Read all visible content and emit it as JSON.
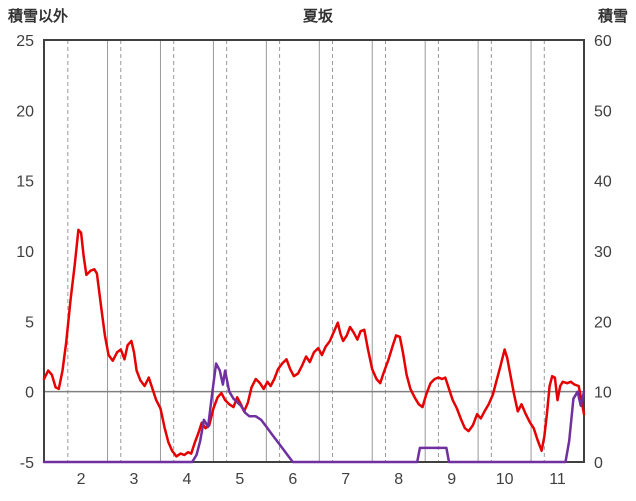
{
  "header": {
    "left_axis_title": "積雪以外",
    "chart_title": "夏坂",
    "right_axis_title": "積雪"
  },
  "chart_data": {
    "type": "line",
    "title": "夏坂",
    "left_axis_label": "積雪以外",
    "right_axis_label": "積雪",
    "xlim": [
      1.3,
      11.5
    ],
    "left_ylim": [
      -5,
      25
    ],
    "right_ylim": [
      0,
      60
    ],
    "x_ticks": [
      2,
      3,
      4,
      5,
      6,
      7,
      8,
      9,
      10,
      11
    ],
    "left_ticks": [
      25,
      20,
      15,
      10,
      5,
      0,
      -5
    ],
    "right_ticks": [
      60,
      50,
      40,
      30,
      20,
      10,
      0
    ],
    "grid": {
      "dashed_x_offset": -0.25,
      "solid_x_offset": 0.5,
      "solid_y_left": [
        0
      ],
      "gridline_color": "#999999",
      "zero_line_color": "#808080",
      "border_color": "#404040",
      "tick_label_color": "#404040"
    },
    "legend": "none",
    "series": [
      {
        "name": "積雪以外",
        "axis": "left",
        "color": "#e60000",
        "points": [
          [
            1.3,
            0.9
          ],
          [
            1.38,
            1.5
          ],
          [
            1.45,
            1.2
          ],
          [
            1.52,
            0.3
          ],
          [
            1.58,
            0.2
          ],
          [
            1.65,
            1.5
          ],
          [
            1.72,
            3.5
          ],
          [
            1.8,
            6.5
          ],
          [
            1.88,
            9.0
          ],
          [
            1.95,
            11.5
          ],
          [
            2.0,
            11.3
          ],
          [
            2.05,
            9.6
          ],
          [
            2.1,
            8.3
          ],
          [
            2.18,
            8.6
          ],
          [
            2.25,
            8.7
          ],
          [
            2.3,
            8.4
          ],
          [
            2.38,
            6.0
          ],
          [
            2.45,
            4.0
          ],
          [
            2.52,
            2.6
          ],
          [
            2.6,
            2.2
          ],
          [
            2.68,
            2.8
          ],
          [
            2.75,
            3.0
          ],
          [
            2.82,
            2.3
          ],
          [
            2.88,
            3.3
          ],
          [
            2.95,
            3.6
          ],
          [
            3.0,
            2.8
          ],
          [
            3.05,
            1.5
          ],
          [
            3.12,
            0.8
          ],
          [
            3.2,
            0.4
          ],
          [
            3.28,
            1.0
          ],
          [
            3.35,
            0.2
          ],
          [
            3.42,
            -0.6
          ],
          [
            3.5,
            -1.2
          ],
          [
            3.58,
            -2.6
          ],
          [
            3.65,
            -3.6
          ],
          [
            3.72,
            -4.2
          ],
          [
            3.8,
            -4.6
          ],
          [
            3.88,
            -4.4
          ],
          [
            3.95,
            -4.5
          ],
          [
            4.02,
            -4.3
          ],
          [
            4.08,
            -4.4
          ],
          [
            4.15,
            -3.6
          ],
          [
            4.22,
            -2.9
          ],
          [
            4.28,
            -2.2
          ],
          [
            4.35,
            -2.6
          ],
          [
            4.42,
            -2.4
          ],
          [
            4.5,
            -1.2
          ],
          [
            4.58,
            -0.4
          ],
          [
            4.65,
            -0.1
          ],
          [
            4.72,
            -0.6
          ],
          [
            4.8,
            -0.9
          ],
          [
            4.88,
            -1.1
          ],
          [
            4.95,
            -0.4
          ],
          [
            5.02,
            -0.9
          ],
          [
            5.08,
            -1.4
          ],
          [
            5.15,
            -0.8
          ],
          [
            5.22,
            0.3
          ],
          [
            5.3,
            0.9
          ],
          [
            5.38,
            0.6
          ],
          [
            5.45,
            0.2
          ],
          [
            5.52,
            0.7
          ],
          [
            5.58,
            0.4
          ],
          [
            5.65,
            0.9
          ],
          [
            5.72,
            1.6
          ],
          [
            5.8,
            2.0
          ],
          [
            5.88,
            2.3
          ],
          [
            5.95,
            1.6
          ],
          [
            6.02,
            1.1
          ],
          [
            6.1,
            1.3
          ],
          [
            6.18,
            1.9
          ],
          [
            6.25,
            2.5
          ],
          [
            6.32,
            2.1
          ],
          [
            6.4,
            2.8
          ],
          [
            6.48,
            3.1
          ],
          [
            6.55,
            2.6
          ],
          [
            6.62,
            3.2
          ],
          [
            6.7,
            3.6
          ],
          [
            6.78,
            4.3
          ],
          [
            6.85,
            4.9
          ],
          [
            6.9,
            4.1
          ],
          [
            6.95,
            3.6
          ],
          [
            7.02,
            4.0
          ],
          [
            7.08,
            4.6
          ],
          [
            7.15,
            4.2
          ],
          [
            7.22,
            3.7
          ],
          [
            7.28,
            4.3
          ],
          [
            7.35,
            4.4
          ],
          [
            7.42,
            3.0
          ],
          [
            7.5,
            1.6
          ],
          [
            7.58,
            0.9
          ],
          [
            7.65,
            0.6
          ],
          [
            7.72,
            1.4
          ],
          [
            7.8,
            2.2
          ],
          [
            7.88,
            3.2
          ],
          [
            7.95,
            4.0
          ],
          [
            8.02,
            3.9
          ],
          [
            8.08,
            2.8
          ],
          [
            8.15,
            1.2
          ],
          [
            8.22,
            0.2
          ],
          [
            8.3,
            -0.4
          ],
          [
            8.38,
            -0.9
          ],
          [
            8.45,
            -1.1
          ],
          [
            8.52,
            -0.2
          ],
          [
            8.6,
            0.6
          ],
          [
            8.68,
            0.9
          ],
          [
            8.75,
            1.0
          ],
          [
            8.82,
            0.9
          ],
          [
            8.88,
            1.0
          ],
          [
            8.95,
            0.2
          ],
          [
            9.02,
            -0.6
          ],
          [
            9.1,
            -1.2
          ],
          [
            9.18,
            -2.0
          ],
          [
            9.25,
            -2.6
          ],
          [
            9.32,
            -2.8
          ],
          [
            9.4,
            -2.4
          ],
          [
            9.48,
            -1.6
          ],
          [
            9.55,
            -1.9
          ],
          [
            9.62,
            -1.4
          ],
          [
            9.7,
            -0.9
          ],
          [
            9.78,
            -0.2
          ],
          [
            9.85,
            0.8
          ],
          [
            9.92,
            1.8
          ],
          [
            10.0,
            3.0
          ],
          [
            10.05,
            2.4
          ],
          [
            10.12,
            1.0
          ],
          [
            10.18,
            -0.2
          ],
          [
            10.25,
            -1.4
          ],
          [
            10.32,
            -0.9
          ],
          [
            10.4,
            -1.6
          ],
          [
            10.48,
            -2.2
          ],
          [
            10.55,
            -2.6
          ],
          [
            10.62,
            -3.4
          ],
          [
            10.7,
            -4.2
          ],
          [
            10.75,
            -3.2
          ],
          [
            10.8,
            -1.6
          ],
          [
            10.85,
            0.4
          ],
          [
            10.9,
            1.1
          ],
          [
            10.95,
            1.0
          ],
          [
            11.0,
            -0.6
          ],
          [
            11.05,
            0.4
          ],
          [
            11.1,
            0.7
          ],
          [
            11.18,
            0.6
          ],
          [
            11.25,
            0.7
          ],
          [
            11.32,
            0.5
          ],
          [
            11.4,
            0.4
          ],
          [
            11.45,
            -0.6
          ],
          [
            11.5,
            -1.6
          ]
        ]
      },
      {
        "name": "積雪",
        "axis": "right",
        "color": "#7030a0",
        "points": [
          [
            1.3,
            0
          ],
          [
            4.1,
            0
          ],
          [
            4.18,
            1
          ],
          [
            4.25,
            3
          ],
          [
            4.32,
            6
          ],
          [
            4.4,
            5
          ],
          [
            4.48,
            10
          ],
          [
            4.55,
            14
          ],
          [
            4.62,
            13
          ],
          [
            4.68,
            11
          ],
          [
            4.72,
            13
          ],
          [
            4.8,
            10
          ],
          [
            4.88,
            9
          ],
          [
            4.95,
            8.5
          ],
          [
            5.02,
            8
          ],
          [
            5.1,
            7
          ],
          [
            5.18,
            6.5
          ],
          [
            5.3,
            6.5
          ],
          [
            5.4,
            6
          ],
          [
            5.5,
            5
          ],
          [
            5.6,
            4
          ],
          [
            5.7,
            3
          ],
          [
            5.8,
            2
          ],
          [
            5.9,
            1
          ],
          [
            6.0,
            0
          ],
          [
            8.35,
            0
          ],
          [
            8.4,
            2
          ],
          [
            8.9,
            2
          ],
          [
            8.95,
            0
          ],
          [
            11.15,
            0
          ],
          [
            11.22,
            3
          ],
          [
            11.3,
            9
          ],
          [
            11.38,
            10
          ],
          [
            11.44,
            8
          ],
          [
            11.5,
            10
          ]
        ]
      }
    ]
  }
}
